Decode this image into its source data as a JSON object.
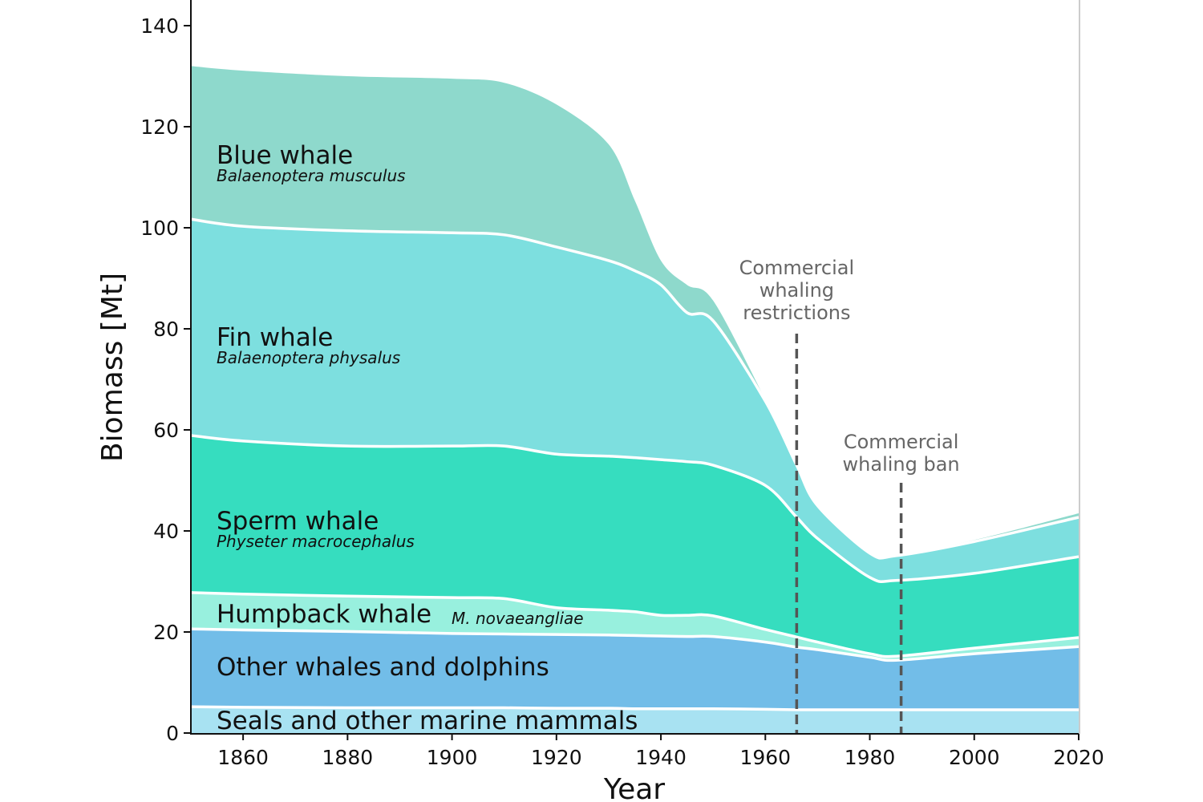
{
  "chart_data": {
    "type": "area",
    "stacked": true,
    "xlabel": "Year",
    "ylabel": "Biomass [Mt]",
    "xlim": [
      1850,
      2020
    ],
    "ylim": [
      0,
      145
    ],
    "xticks": [
      1860,
      1880,
      1900,
      1920,
      1940,
      1960,
      1980,
      2000,
      2020
    ],
    "yticks": [
      0,
      20,
      40,
      60,
      80,
      100,
      120,
      140
    ],
    "grid": false,
    "legend": "inline labels",
    "x": [
      1850,
      1860,
      1880,
      1900,
      1910,
      1920,
      1930,
      1935,
      1940,
      1945,
      1950,
      1960,
      1966,
      1970,
      1980,
      1985,
      2000,
      2020
    ],
    "series": [
      {
        "name": "Seals and other marine mammals",
        "scientific_name": "",
        "color": "#a8e2f2",
        "values": [
          5.2,
          5.1,
          5.0,
          5.0,
          5.0,
          4.9,
          4.9,
          4.8,
          4.8,
          4.8,
          4.8,
          4.7,
          4.6,
          4.6,
          4.6,
          4.6,
          4.6,
          4.6
        ]
      },
      {
        "name": "Other whales and dolphins",
        "scientific_name": "",
        "color": "#72bde8",
        "values": [
          15.4,
          15.3,
          15.1,
          14.7,
          14.6,
          14.6,
          14.5,
          14.5,
          14.4,
          14.3,
          14.3,
          13.3,
          12.4,
          11.9,
          10.4,
          9.8,
          11.1,
          12.5
        ]
      },
      {
        "name": "Humpback whale",
        "scientific_name": "M. novaeangliae",
        "color": "#98f0de",
        "values": [
          7.2,
          7.1,
          7.0,
          7.1,
          7.0,
          5.3,
          4.9,
          4.7,
          4.1,
          4.2,
          4.1,
          2.5,
          2.0,
          1.5,
          0.7,
          0.8,
          1.1,
          1.8
        ]
      },
      {
        "name": "Sperm whale",
        "scientific_name": "Physeter macrocephalus",
        "color": "#36ddbf",
        "values": [
          31.1,
          30.3,
          29.7,
          30.0,
          30.2,
          30.4,
          30.5,
          30.5,
          30.8,
          30.4,
          29.8,
          28.5,
          23.7,
          20.5,
          15.1,
          15.0,
          14.8,
          16.0
        ]
      },
      {
        "name": "Fin whale",
        "scientific_name": "Balaenoptera physalus",
        "color": "#7ddfdf",
        "values": [
          42.8,
          42.5,
          42.6,
          42.2,
          41.8,
          41.0,
          38.7,
          37.0,
          34.6,
          29.5,
          28.6,
          16.7,
          10.3,
          6.5,
          4.8,
          4.9,
          6.3,
          7.8
        ]
      },
      {
        "name": "Blue whale",
        "scientific_name": "Balaenoptera musculus",
        "color": "#8ed9cc",
        "values": [
          30.3,
          30.8,
          30.6,
          30.5,
          30.1,
          28.2,
          23.0,
          13.9,
          4.8,
          5.5,
          4.0,
          0.3,
          0.2,
          0.2,
          0.2,
          0.2,
          0.3,
          0.8
        ]
      }
    ],
    "annotations": [
      {
        "x": 1966,
        "text": [
          "Commercial",
          "whaling",
          "restrictions"
        ],
        "style": "dashed vertical line",
        "color": "#555555"
      },
      {
        "x": 1986,
        "text": [
          "Commercial",
          "whaling ban"
        ],
        "style": "dashed vertical line",
        "color": "#555555"
      }
    ]
  }
}
